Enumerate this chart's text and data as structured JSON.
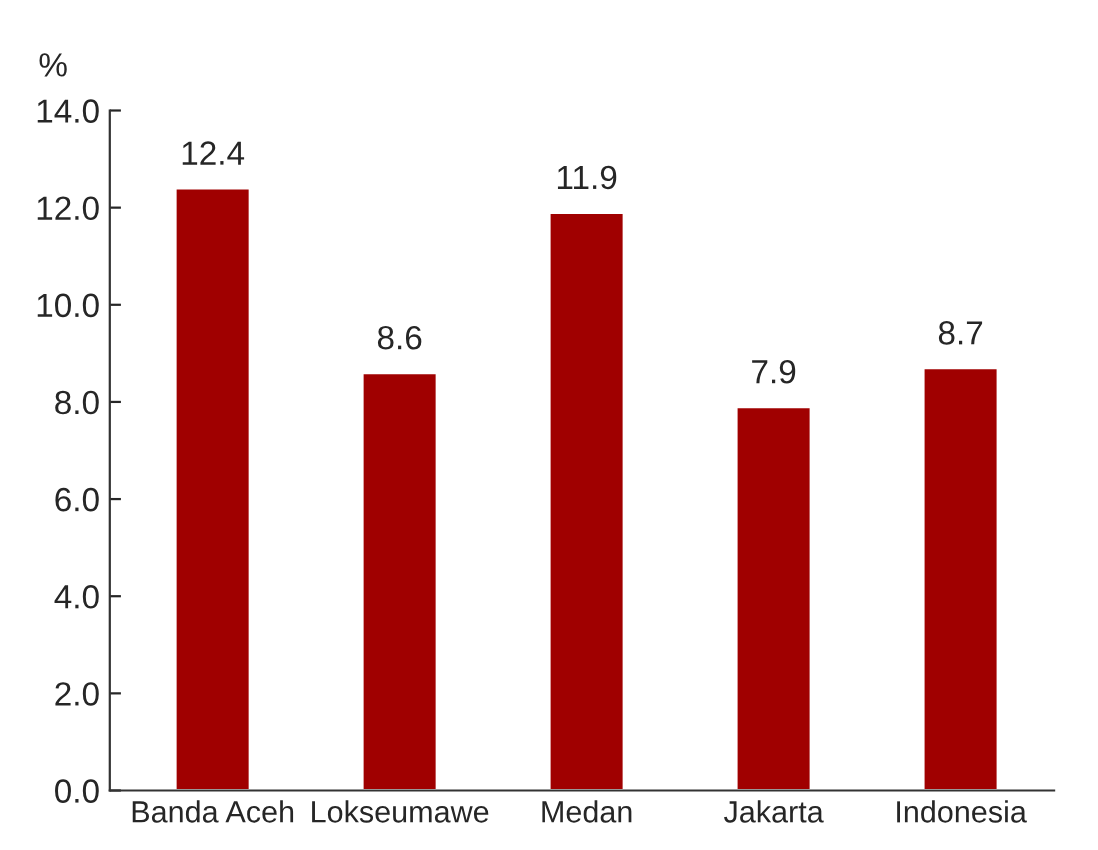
{
  "chart_data": {
    "type": "bar",
    "ylabel": "%",
    "categories": [
      "Banda Aceh",
      "Lokseumawe",
      "Medan",
      "Jakarta",
      "Indonesia"
    ],
    "values": [
      12.4,
      8.6,
      11.9,
      7.9,
      8.7
    ],
    "color": "#a00000",
    "ylim": [
      0,
      14
    ],
    "yticks": [
      {
        "value": 0,
        "label": "0.0"
      },
      {
        "value": 2,
        "label": "2.0"
      },
      {
        "value": 4,
        "label": "4.0"
      },
      {
        "value": 6,
        "label": "6.0"
      },
      {
        "value": 8,
        "label": "8.0"
      },
      {
        "value": 10,
        "label": "10.0"
      },
      {
        "value": 12,
        "label": "12.0"
      },
      {
        "value": 14,
        "label": "14.0"
      }
    ],
    "data_labels": true,
    "grid": false,
    "legend": false
  }
}
